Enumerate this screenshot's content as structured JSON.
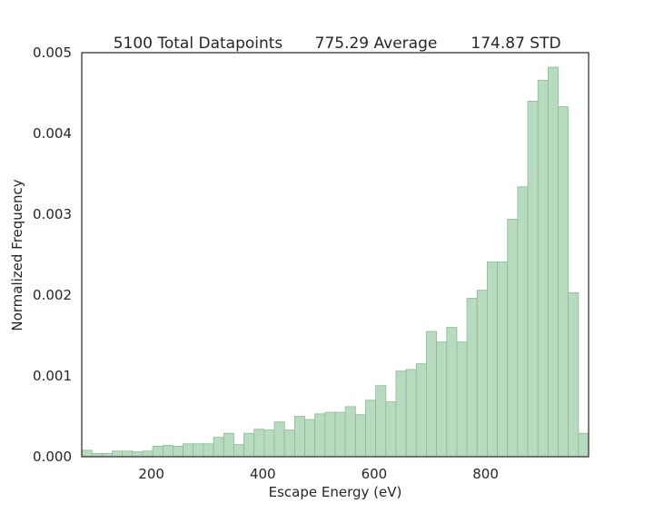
{
  "chart_data": {
    "type": "bar",
    "title_parts": [
      "5100 Total Datapoints",
      "775.29 Average",
      "174.87 STD"
    ],
    "xlabel": "Escape Energy (eV)",
    "ylabel": "Normalized Frequency",
    "xlim": [
      75,
      985
    ],
    "ylim": [
      0,
      0.005
    ],
    "x_ticks": [
      200,
      400,
      600,
      800
    ],
    "y_ticks": [
      0.0,
      0.001,
      0.002,
      0.003,
      0.004,
      0.005
    ],
    "y_tick_labels": [
      "0.000",
      "0.001",
      "0.002",
      "0.003",
      "0.004",
      "0.005"
    ],
    "bin_width": 18.2,
    "bin_start": 75,
    "values": [
      8e-05,
      4e-05,
      4e-05,
      7e-05,
      7e-05,
      6e-05,
      7e-05,
      0.00013,
      0.00014,
      0.00013,
      0.00016,
      0.00016,
      0.00016,
      0.00024,
      0.00029,
      0.00015,
      0.00029,
      0.00034,
      0.00033,
      0.00043,
      0.00033,
      0.0005,
      0.00046,
      0.00053,
      0.00055,
      0.00055,
      0.00062,
      0.00052,
      0.0007,
      0.00088,
      0.00068,
      0.00106,
      0.00108,
      0.00115,
      0.00155,
      0.00142,
      0.0016,
      0.00142,
      0.00196,
      0.00206,
      0.00241,
      0.00241,
      0.00294,
      0.00334,
      0.0044,
      0.00466,
      0.00482,
      0.00433,
      0.00203,
      0.00029
    ],
    "bar_color": "#b8dbbf",
    "bar_edge_color": "#8fb897",
    "grid": false
  }
}
